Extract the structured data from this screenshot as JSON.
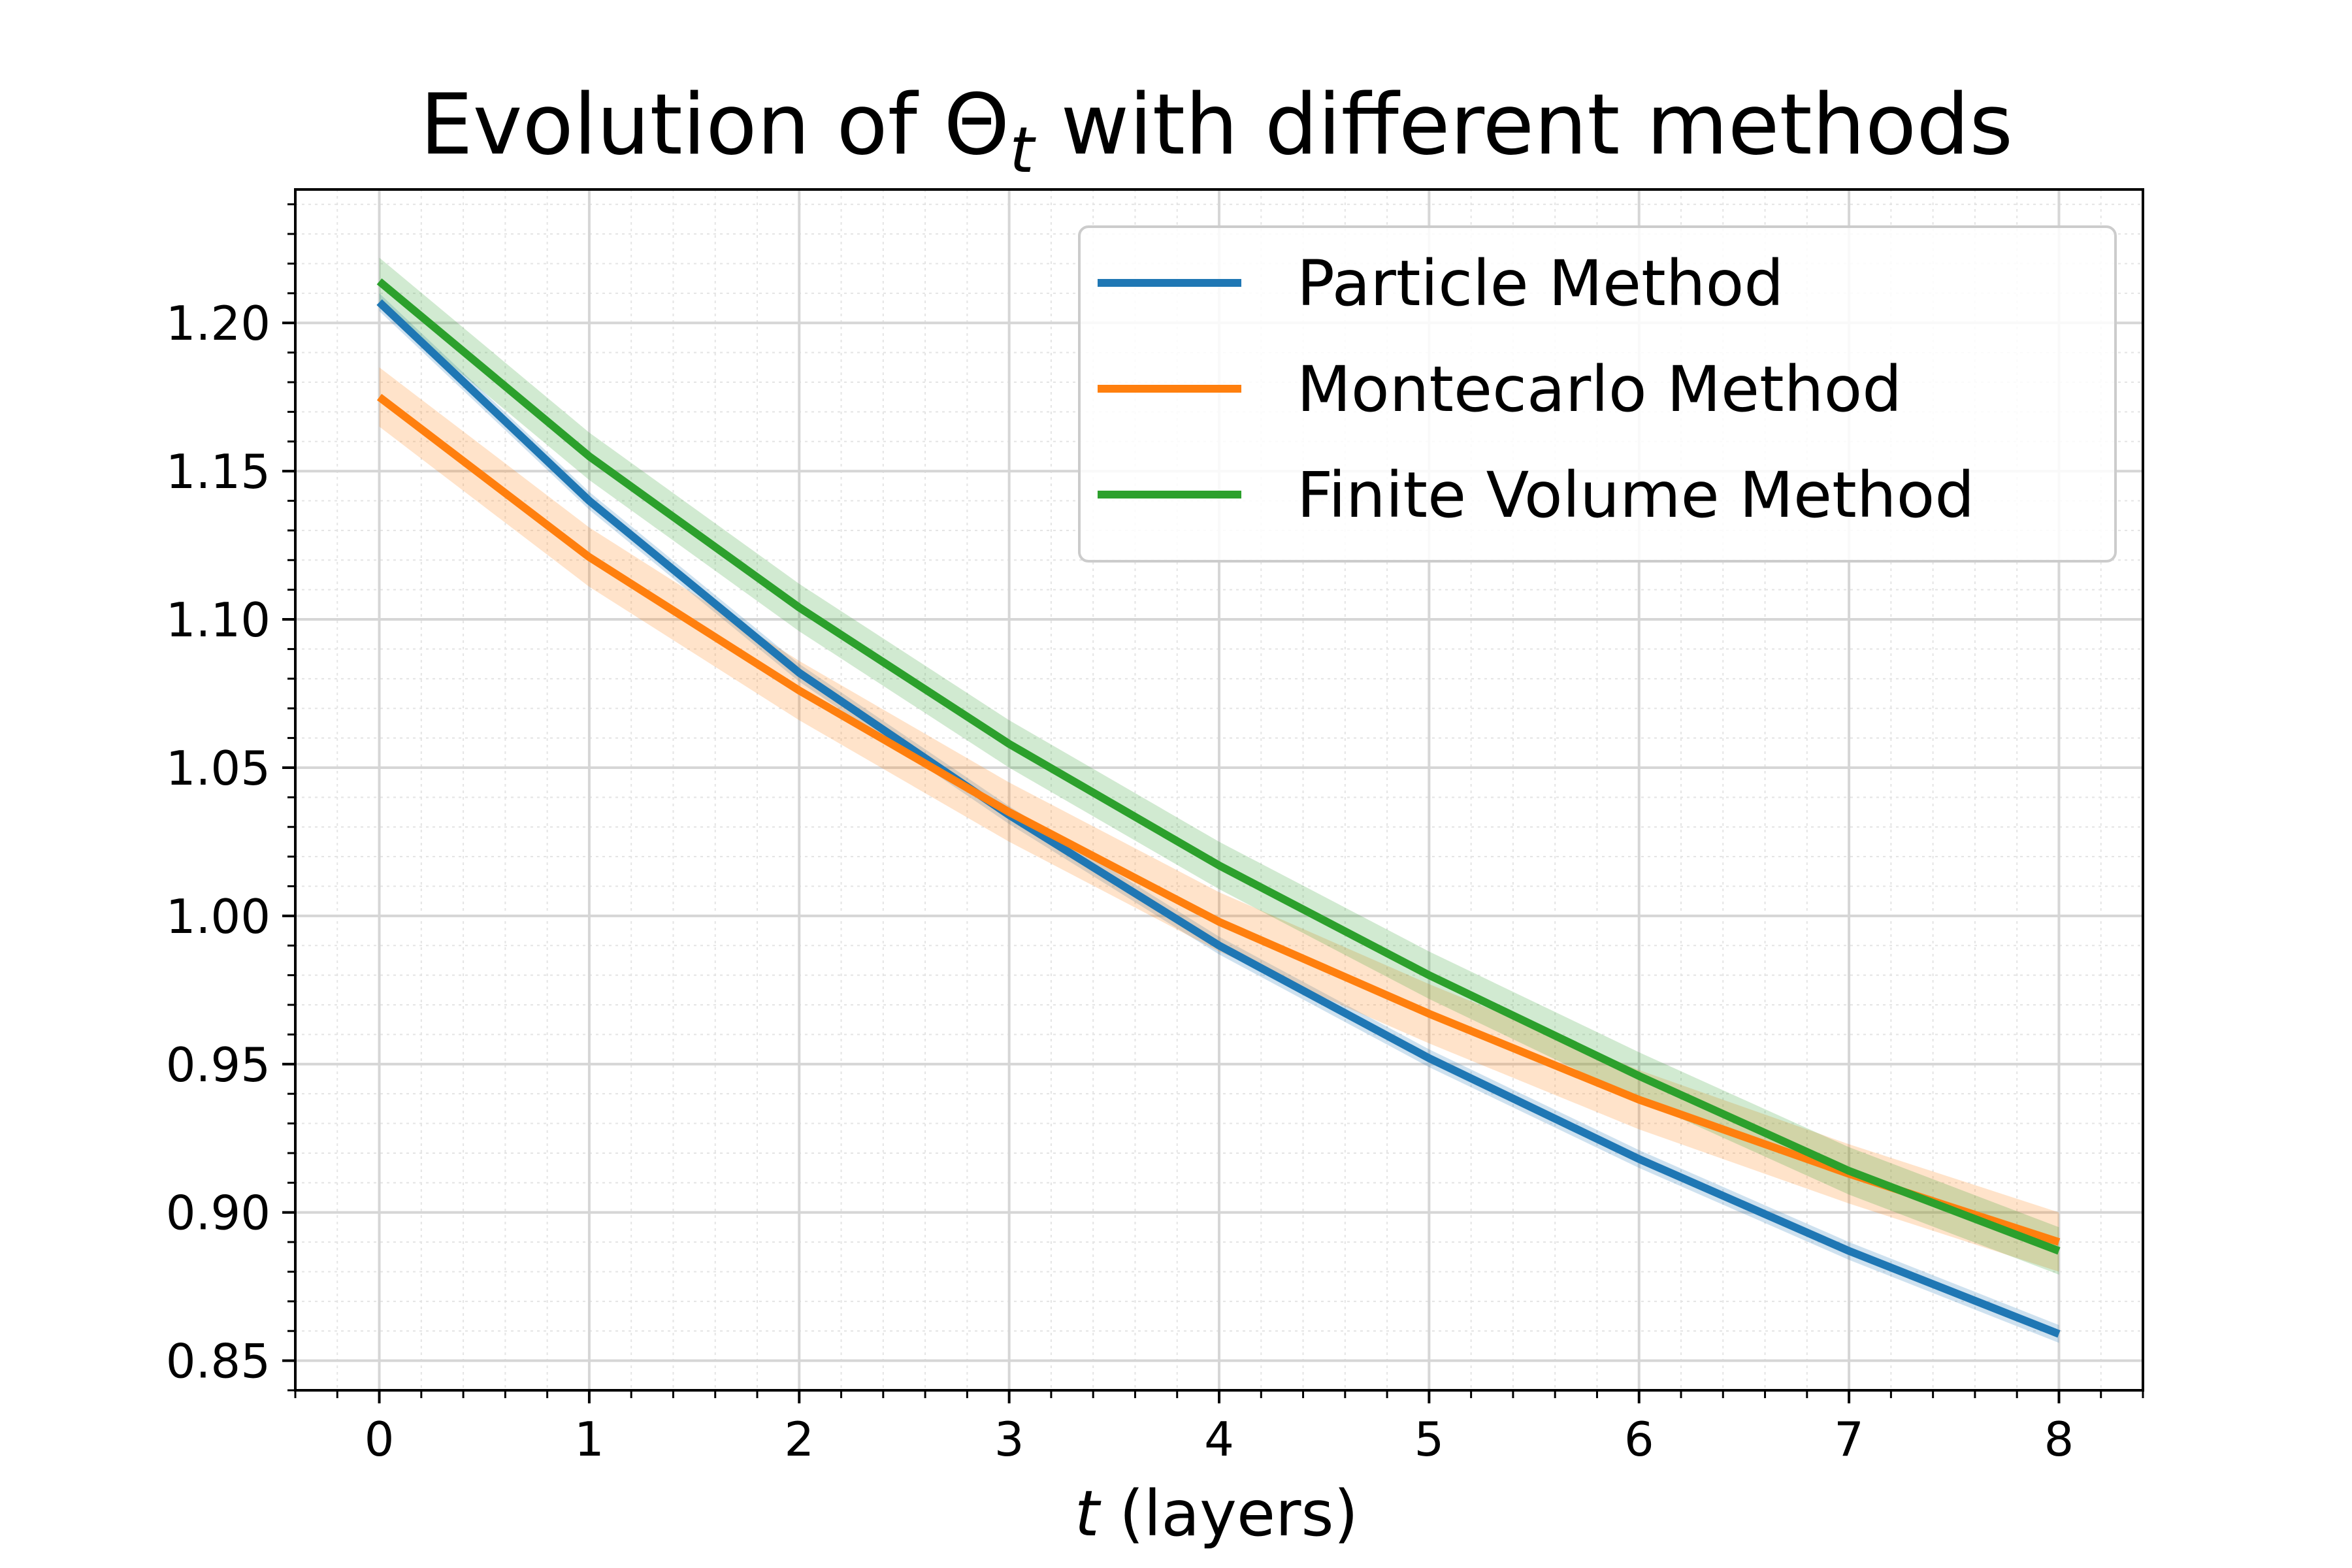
{
  "chart_data": {
    "type": "line",
    "title_main": "Evolution of Θ",
    "title_sub": "t",
    "title_rest": " with different methods",
    "xlabel_var": "t",
    "xlabel_rest": " (layers)",
    "ylabel": "",
    "xlim": [
      -0.4,
      8.4
    ],
    "ylim": [
      0.84,
      1.245
    ],
    "x_ticks": [
      0,
      1,
      2,
      3,
      4,
      5,
      6,
      7,
      8
    ],
    "x_tick_labels": [
      "0",
      "1",
      "2",
      "3",
      "4",
      "5",
      "6",
      "7",
      "8"
    ],
    "y_ticks": [
      0.85,
      0.9,
      0.95,
      1.0,
      1.05,
      1.1,
      1.15,
      1.2
    ],
    "y_tick_labels": [
      "0.85",
      "0.90",
      "0.95",
      "1.00",
      "1.05",
      "1.10",
      "1.15",
      "1.20"
    ],
    "grid": true,
    "legend_position": "top-right",
    "x": [
      0,
      1,
      2,
      3,
      4,
      5,
      6,
      7,
      8
    ],
    "series": [
      {
        "name": "Particle Method",
        "color": "#1f77b4",
        "values": [
          1.207,
          1.14,
          1.082,
          1.034,
          0.99,
          0.952,
          0.918,
          0.887,
          0.859
        ],
        "band": 0.003
      },
      {
        "name": "Montecarlo Method",
        "color": "#ff7f0e",
        "values": [
          1.175,
          1.121,
          1.076,
          1.035,
          0.998,
          0.967,
          0.938,
          0.913,
          0.89
        ],
        "band": 0.01
      },
      {
        "name": "Finite Volume Method",
        "color": "#2ca02c",
        "values": [
          1.214,
          1.155,
          1.104,
          1.058,
          1.017,
          0.98,
          0.946,
          0.914,
          0.887
        ],
        "band": 0.008
      }
    ]
  }
}
